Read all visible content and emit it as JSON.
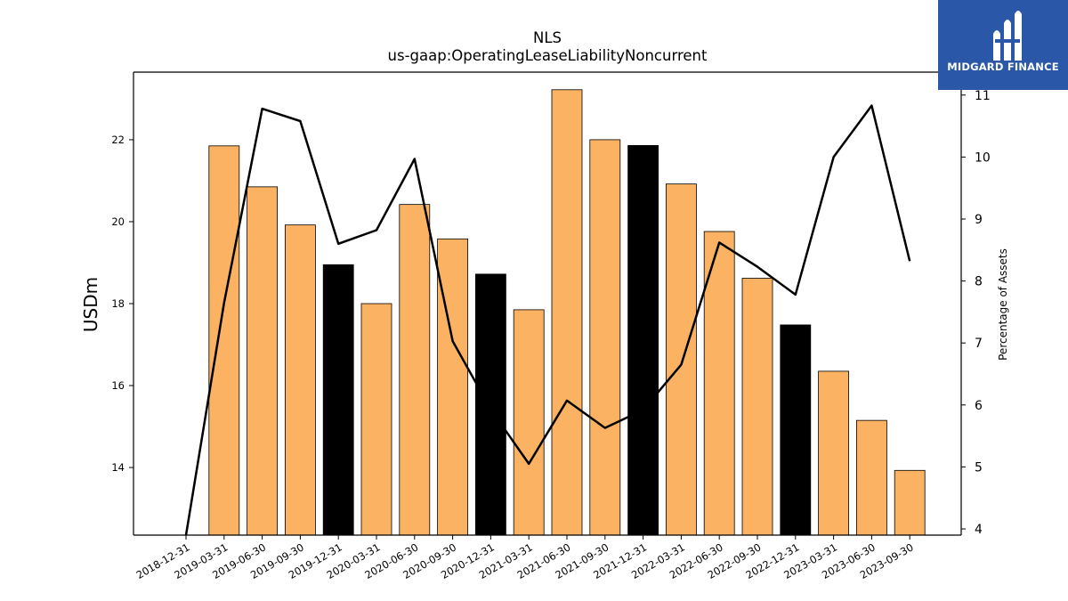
{
  "chart_data": {
    "type": "bar",
    "title": "NLS",
    "subtitle": "us-gaap:OperatingLeaseLiabilityNoncurrent",
    "ylabel": "USDm",
    "y2label": "Percentage of Assets",
    "categories": [
      "2018-12-31",
      "2019-03-31",
      "2019-06-30",
      "2019-09-30",
      "2019-12-31",
      "2020-03-31",
      "2020-06-30",
      "2020-09-30",
      "2020-12-31",
      "2021-03-31",
      "2021-06-30",
      "2021-09-30",
      "2021-12-31",
      "2022-03-31",
      "2022-06-30",
      "2022-09-30",
      "2022-12-31",
      "2023-03-31",
      "2023-06-30",
      "2023-09-30"
    ],
    "series": [
      {
        "type": "bar",
        "axis": "left",
        "values": [
          null,
          21.85,
          20.85,
          19.92,
          18.95,
          18.0,
          20.42,
          19.58,
          18.72,
          17.85,
          23.22,
          22.0,
          21.86,
          20.92,
          19.76,
          18.62,
          17.48,
          16.35,
          15.15,
          13.93
        ],
        "colors": [
          "#fbb262",
          "#fbb262",
          "#fbb262",
          "#fbb262",
          "#000000",
          "#fbb262",
          "#fbb262",
          "#fbb262",
          "#000000",
          "#fbb262",
          "#fbb262",
          "#fbb262",
          "#000000",
          "#fbb262",
          "#fbb262",
          "#fbb262",
          "#000000",
          "#fbb262",
          "#fbb262",
          "#fbb262"
        ]
      },
      {
        "type": "line",
        "axis": "right",
        "values": [
          3.9,
          7.65,
          10.78,
          10.58,
          8.6,
          8.82,
          9.97,
          7.03,
          5.93,
          5.05,
          6.07,
          5.63,
          5.92,
          6.65,
          8.62,
          8.23,
          7.78,
          10.0,
          10.83,
          8.32
        ],
        "color": "#000000"
      }
    ],
    "ylim": [
      12.35,
      23.65
    ],
    "y2lim": [
      3.9,
      11.37
    ],
    "yticks": [
      14,
      16,
      18,
      20,
      22
    ],
    "y2ticks": [
      4,
      5,
      6,
      7,
      8,
      9,
      10,
      11
    ],
    "grid": false,
    "legend": "none"
  },
  "logo": {
    "text": "MIDGARD FINANCE",
    "background": "#2a57a8"
  }
}
